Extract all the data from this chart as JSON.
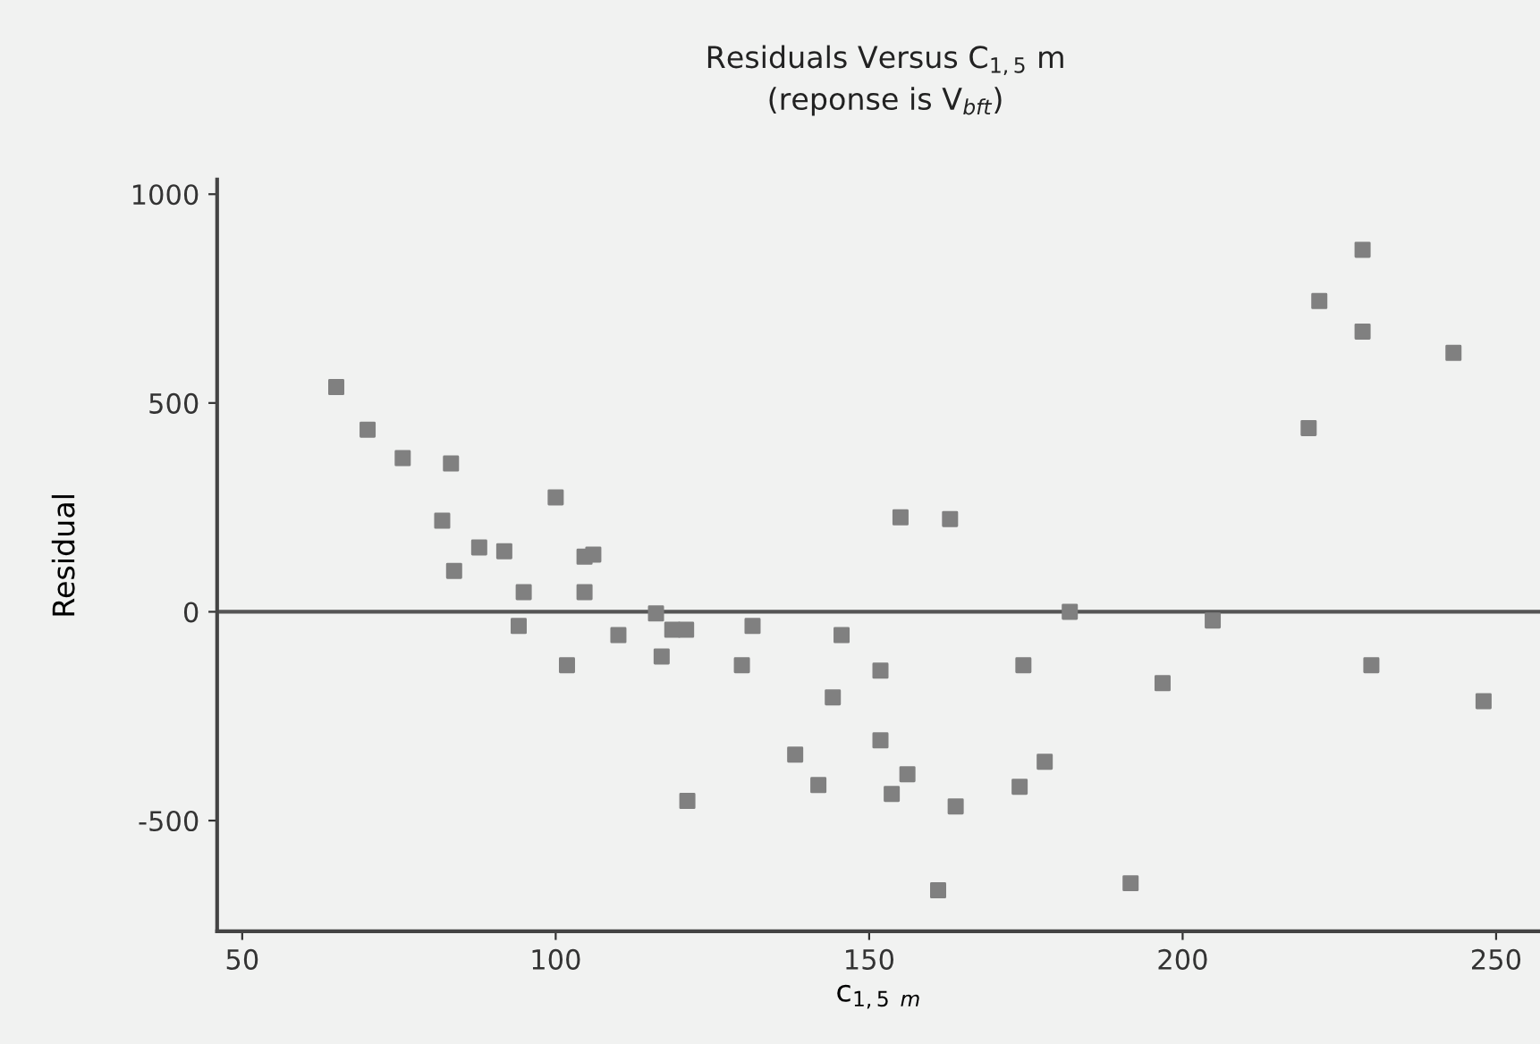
{
  "chart_data": {
    "type": "scatter",
    "title": "Residuals Versus C$_{1,5}$ m",
    "subtitle": "(reponse is V$_{bft}$)",
    "xlabel": "c$_{1,5 m}$",
    "ylabel": "Residual",
    "x": [
      65,
      70,
      75.6,
      83.3,
      81.9,
      83.8,
      87.8,
      91.8,
      94.9,
      94.1,
      100,
      101.8,
      104.6,
      106,
      104.6,
      110,
      116,
      116.9,
      118.6,
      120.8,
      121,
      129.7,
      131.4,
      138.2,
      141.9,
      144.2,
      145.6,
      151.8,
      151.8,
      153.6,
      155,
      156.1,
      161,
      162.9,
      163.8,
      174,
      174.6,
      178,
      182,
      191.7,
      196.8,
      204.8,
      220.1,
      221.8,
      228.7,
      228.7,
      230.1,
      243.2,
      248
    ],
    "values": [
      538,
      436,
      368,
      355,
      218,
      98,
      154,
      145,
      47,
      -34,
      274,
      -128,
      132,
      137,
      47,
      -56,
      -4,
      -107,
      -43,
      -43,
      -453,
      -128,
      -34,
      -342,
      -415,
      -205,
      -56,
      -141,
      -308,
      -436,
      226,
      -389,
      -667,
      222,
      -466,
      -419,
      -128,
      -359,
      0,
      -650,
      -171,
      -21,
      440,
      744,
      867,
      671,
      -128,
      620,
      -214
    ],
    "color": "#808080",
    "marker": "square",
    "xlim": [
      46,
      257
    ],
    "ylim": [
      -765,
      1035
    ],
    "xticks": [
      50,
      100,
      150,
      200,
      250
    ],
    "yticks": [
      -500,
      0,
      500,
      1000
    ],
    "ref_lines": [
      {
        "axis": "y",
        "value": 0,
        "color": "#555555",
        "line_style": "solid"
      }
    ],
    "grid": false
  }
}
